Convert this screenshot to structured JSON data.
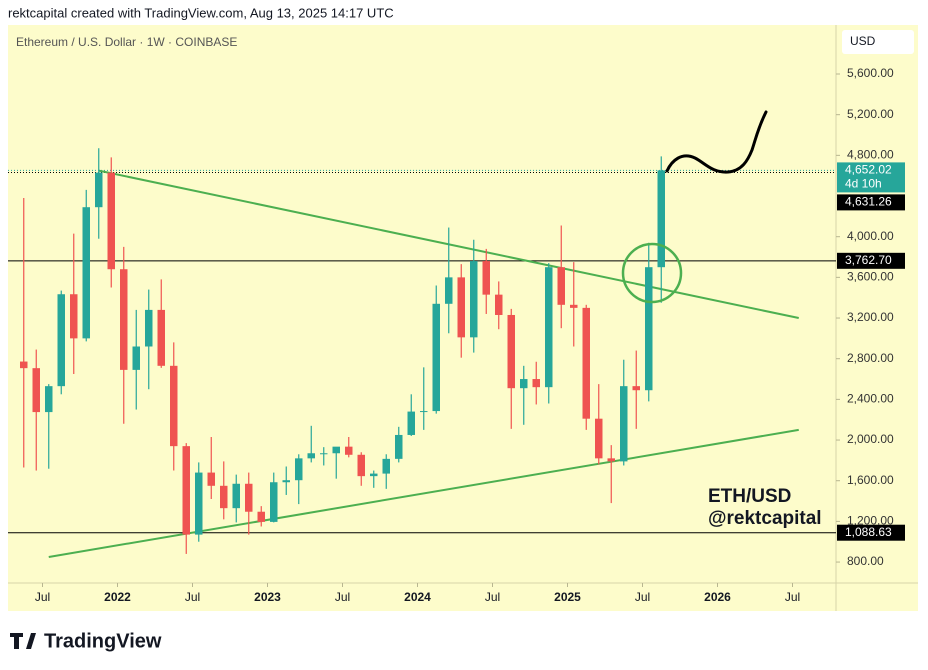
{
  "header": "rektcapital created with TradingView.com, Aug 13, 2025 14:17 UTC",
  "logo": "TradingView",
  "chart_data": {
    "type": "candlestick",
    "title": "Ethereum / U.S. Dollar · 1W · COINBASE",
    "currency": "USD",
    "annotation": [
      "ETH/USD",
      "@rektcapital"
    ],
    "up_color": "#26a69a",
    "down_color": "#ef5350",
    "dates": [
      "2021-05",
      "2021-06",
      "2021-07",
      "2021-08",
      "2021-09",
      "2021-10",
      "2021-11",
      "2021-12",
      "2022-01",
      "2022-02",
      "2022-03",
      "2022-04",
      "2022-05",
      "2022-06",
      "2022-07",
      "2022-08",
      "2022-09",
      "2022-10",
      "2022-11",
      "2022-12",
      "2023-01",
      "2023-02",
      "2023-03",
      "2023-04",
      "2023-05",
      "2023-06",
      "2023-07",
      "2023-08",
      "2023-09",
      "2023-10",
      "2023-11",
      "2023-12",
      "2024-01",
      "2024-02",
      "2024-03",
      "2024-04",
      "2024-05",
      "2024-06",
      "2024-07",
      "2024-08",
      "2024-09",
      "2024-10",
      "2024-11",
      "2024-12",
      "2025-01",
      "2025-02",
      "2025-03",
      "2025-04",
      "2025-05",
      "2025-06",
      "2025-07",
      "2025-08"
    ],
    "open": [
      2772,
      2707,
      2275,
      2530,
      3434,
      3000,
      4290,
      4630,
      3680,
      2690,
      2920,
      3280,
      2730,
      1940,
      1070,
      1680,
      1550,
      1330,
      1570,
      1295,
      1195,
      1585,
      1605,
      1820,
      1870,
      1870,
      1935,
      1855,
      1645,
      1670,
      1815,
      2050,
      2280,
      2285,
      3340,
      3600,
      3010,
      3760,
      3430,
      3230,
      2510,
      2600,
      2520,
      3700,
      3330,
      3300,
      2210,
      1820,
      1790,
      2530,
      2490,
      3700
    ],
    "high": [
      4380,
      2890,
      2550,
      3470,
      4030,
      4460,
      4870,
      4780,
      3900,
      3280,
      3480,
      3580,
      2960,
      1970,
      1780,
      2030,
      1790,
      1660,
      1680,
      1350,
      1680,
      1740,
      1860,
      2140,
      1930,
      1930,
      2030,
      1880,
      1700,
      1860,
      2130,
      2450,
      2715,
      3520,
      4090,
      3730,
      3970,
      3880,
      3560,
      3290,
      2730,
      2770,
      3740,
      4110,
      3750,
      3330,
      2550,
      1950,
      2790,
      2880,
      3940,
      4790
    ],
    "low": [
      1730,
      1700,
      1718,
      2450,
      2650,
      2970,
      3980,
      3500,
      2160,
      2300,
      2500,
      2710,
      1700,
      880,
      1000,
      1420,
      1220,
      1190,
      1070,
      1150,
      1190,
      1460,
      1370,
      1780,
      1750,
      1620,
      1830,
      1550,
      1530,
      1520,
      1780,
      2040,
      2100,
      2260,
      3050,
      2810,
      2860,
      3240,
      3090,
      2110,
      2150,
      2350,
      2360,
      3100,
      2920,
      2100,
      1760,
      1380,
      1750,
      2110,
      2380,
      3350
    ],
    "close": [
      2707,
      2275,
      2530,
      3434,
      3000,
      4290,
      4630,
      3680,
      2690,
      2920,
      3280,
      2730,
      1940,
      1070,
      1680,
      1550,
      1330,
      1570,
      1295,
      1195,
      1585,
      1605,
      1820,
      1870,
      1870,
      1935,
      1855,
      1645,
      1670,
      1815,
      2050,
      2280,
      2285,
      3340,
      3600,
      3010,
      3760,
      3430,
      3230,
      2510,
      2600,
      2520,
      3700,
      3330,
      3300,
      2210,
      1820,
      1790,
      2530,
      2490,
      3700,
      4652
    ],
    "trendlines": [
      {
        "dates": [
          "2021-11",
          "2026-07"
        ],
        "prices": [
          4650,
          3200
        ],
        "color": "#4caf50"
      },
      {
        "dates": [
          "2021-07",
          "2026-07"
        ],
        "prices": [
          850,
          2100
        ],
        "color": "#4caf50"
      }
    ],
    "price_lines": [
      {
        "value": 4652.02,
        "label": "4,652.02",
        "countdown": "4d 10h",
        "color": "#26a69a",
        "style": "dotted"
      },
      {
        "value": 4631.26,
        "label": "4,631.26",
        "color": "#000000",
        "style": "dotted"
      },
      {
        "value": 3762.7,
        "label": "3,762.70",
        "color": "#000000",
        "style": "solid"
      },
      {
        "value": 1088.63,
        "label": "1,088.63",
        "color": "#000000",
        "style": "solid"
      }
    ],
    "ylim": [
      594,
      6082
    ],
    "yticks": [
      {
        "value": 800,
        "label": "800.00"
      },
      {
        "value": 1200,
        "label": "1,200.00"
      },
      {
        "value": 1600,
        "label": "1,600.00"
      },
      {
        "value": 2000,
        "label": "2,000.00"
      },
      {
        "value": 2400,
        "label": "2,400.00"
      },
      {
        "value": 2800,
        "label": "2,800.00"
      },
      {
        "value": 3200,
        "label": "3,200.00"
      },
      {
        "value": 3600,
        "label": "3,600.00"
      },
      {
        "value": 4000,
        "label": "4,000.00"
      },
      {
        "value": 4800,
        "label": "4,800.00"
      },
      {
        "value": 5200,
        "label": "5,200.00"
      },
      {
        "value": 5600,
        "label": "5,600.00"
      }
    ],
    "xlim": [
      2021.27,
      2026.79
    ],
    "xticks": [
      {
        "value": 2021.5,
        "label": "Jul"
      },
      {
        "value": 2022,
        "label": "2022"
      },
      {
        "value": 2022.5,
        "label": "Jul"
      },
      {
        "value": 2023,
        "label": "2023"
      },
      {
        "value": 2023.5,
        "label": "Jul"
      },
      {
        "value": 2024,
        "label": "2024"
      },
      {
        "value": 2024.5,
        "label": "Jul"
      },
      {
        "value": 2025,
        "label": "2025"
      },
      {
        "value": 2025.5,
        "label": "Jul"
      },
      {
        "value": 2026,
        "label": "2026"
      },
      {
        "value": 2026.5,
        "label": "Jul"
      }
    ]
  }
}
